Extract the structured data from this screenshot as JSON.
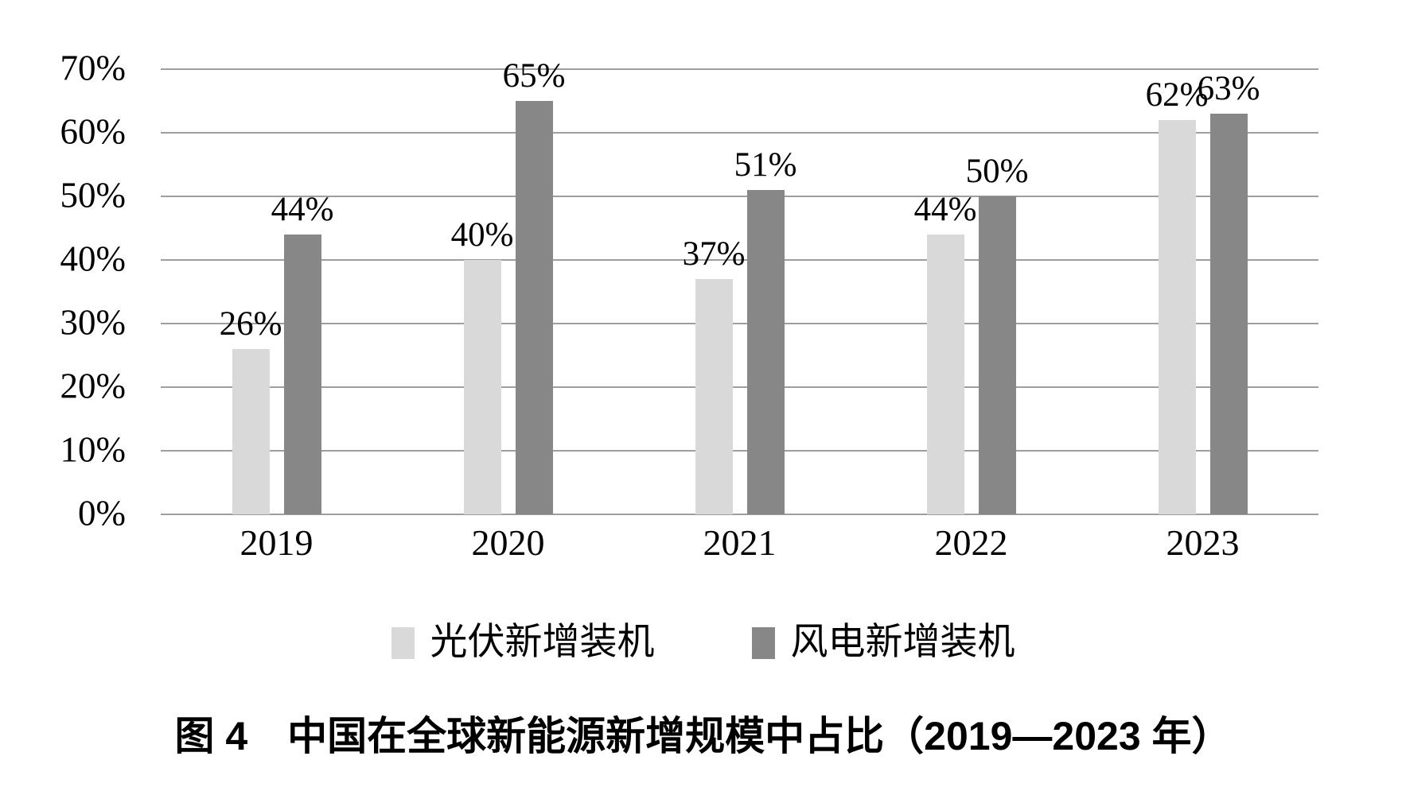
{
  "chart_data": {
    "type": "bar",
    "title": "",
    "categories": [
      "2019",
      "2020",
      "2021",
      "2022",
      "2023"
    ],
    "series": [
      {
        "key": "pv",
        "name": "光伏新增装机",
        "values": [
          26,
          40,
          37,
          44,
          62
        ],
        "labels": [
          "26%",
          "40%",
          "37%",
          "44%",
          "62%"
        ],
        "color": "#d9d9d9"
      },
      {
        "key": "wind",
        "name": "风电新增装机",
        "values": [
          44,
          65,
          51,
          50,
          63
        ],
        "labels": [
          "44%",
          "65%",
          "51%",
          "50%",
          "63%"
        ],
        "color": "#878787"
      }
    ],
    "xlabel": "",
    "ylabel": "",
    "ylim": [
      0,
      70
    ],
    "ytick_values": [
      0,
      10,
      20,
      30,
      40,
      50,
      60,
      70
    ],
    "yticks": [
      "0%",
      "10%",
      "20%",
      "30%",
      "40%",
      "50%",
      "60%",
      "70%"
    ],
    "grid": true,
    "gridline_color": "#9e9e9e",
    "legend_position": "bottom",
    "data_labels": true
  },
  "caption": {
    "text": "图 4　中国在全球新能源新增规模中占比（2019—2023 年）"
  },
  "colors": {
    "background": "#ffffff",
    "text": "#000000",
    "pv_bar": "#d9d9d9",
    "wind_bar": "#878787",
    "gridline": "#9e9e9e"
  }
}
